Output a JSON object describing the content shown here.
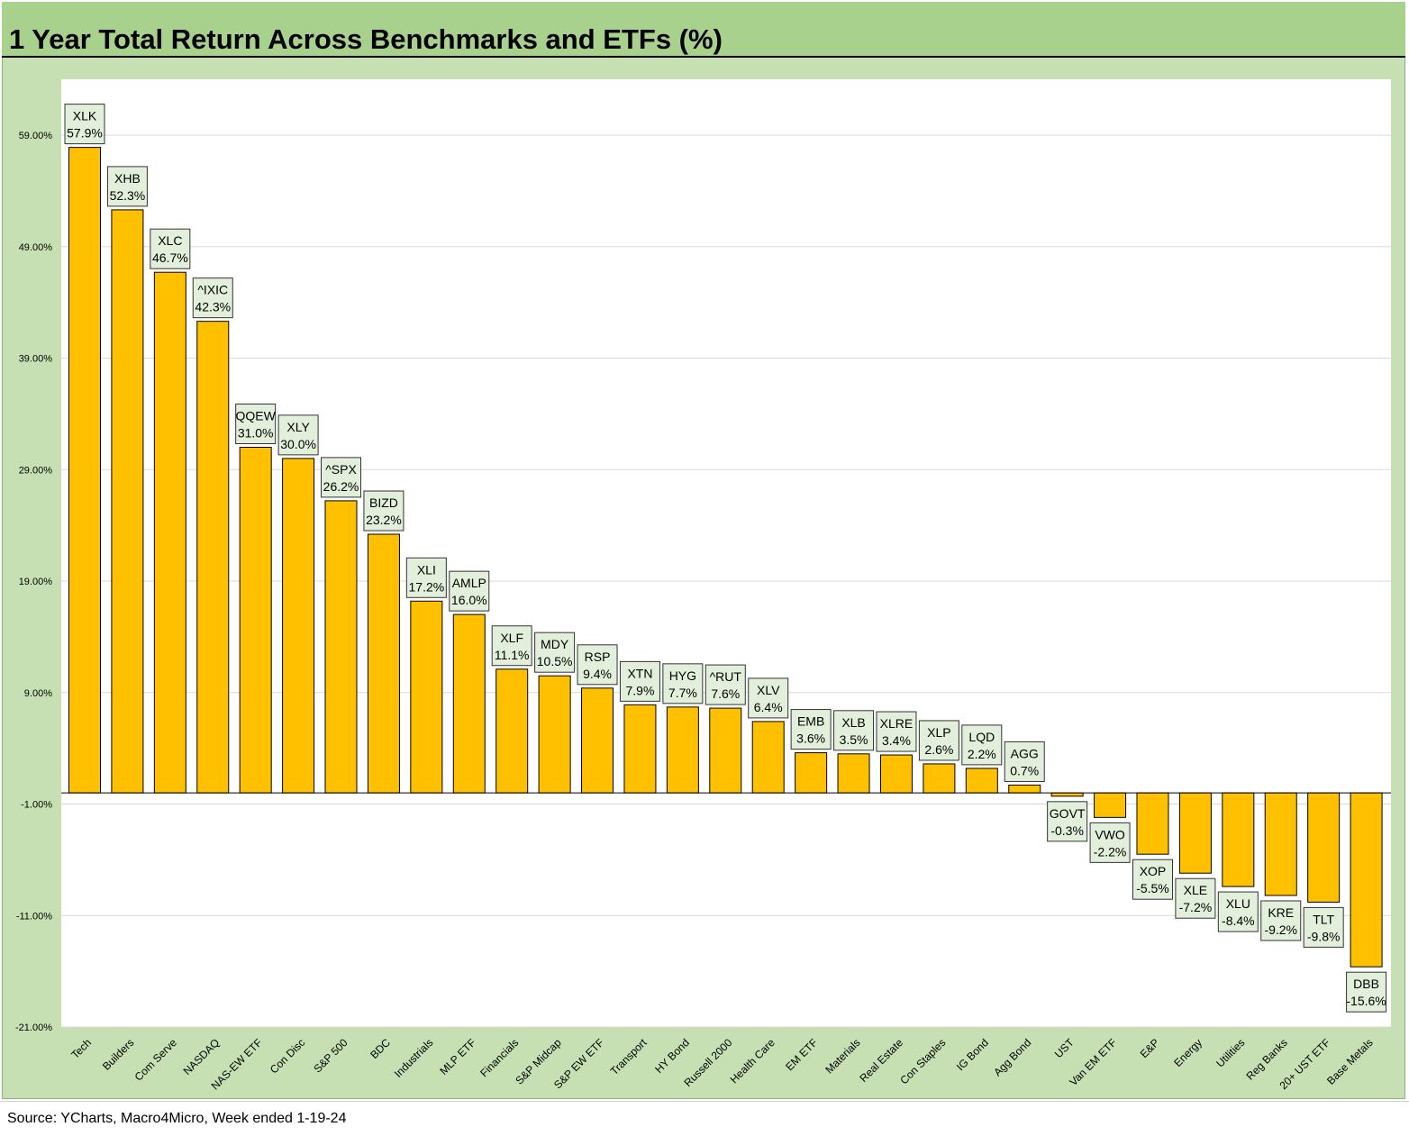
{
  "title": "1 Year Total Return Across Benchmarks and ETFs (%)",
  "source": "Source: YCharts, Macro4Micro, Week ended 1-19-24",
  "colors": {
    "bar": "#ffc000",
    "bar_stroke": "#000000",
    "label_bg": "#e2efda",
    "label_border": "#333333",
    "gridline": "#d9d9d9",
    "frame": "#c6e0b4",
    "title_bar": "#a9d18e"
  },
  "chart_data": {
    "type": "bar",
    "title": "1 Year Total Return Across Benchmarks and ETFs (%)",
    "xlabel": "",
    "ylabel": "",
    "ylim": [
      -21,
      64
    ],
    "yticks": [
      59,
      49,
      39,
      29,
      19,
      9,
      -1,
      -11,
      -21
    ],
    "ytick_labels": [
      "59.00%",
      "49.00%",
      "39.00%",
      "29.00%",
      "19.00%",
      "9.00%",
      "-1.00%",
      "-11.00%",
      "-21.00%"
    ],
    "grid": true,
    "categories": [
      "Tech",
      "Builders",
      "Com Serve",
      "NASDAQ",
      "NAS-EW ETF",
      "Con Disc",
      "S&P 500",
      "BDC",
      "Industrials",
      "MLP ETF",
      "Financials",
      "S&P Midcap",
      "S&P EW ETF",
      "Transport",
      "HY Bond",
      "Russell 2000",
      "Health Care",
      "EM ETF",
      "Materials",
      "Real Estate",
      "Con Staples",
      "IG Bond",
      "Agg Bond",
      "UST",
      "Van EM ETF",
      "E&P",
      "Energy",
      "Utilities",
      "Reg Banks",
      "20+ UST ETF",
      "Base Metals"
    ],
    "tickers": [
      "XLK",
      "XHB",
      "XLC",
      "^IXIC",
      "QQEW",
      "XLY",
      "^SPX",
      "BIZD",
      "XLI",
      "AMLP",
      "XLF",
      "MDY",
      "RSP",
      "XTN",
      "HYG",
      "^RUT",
      "XLV",
      "EMB",
      "XLB",
      "XLRE",
      "XLP",
      "LQD",
      "AGG",
      "GOVT",
      "VWO",
      "XOP",
      "XLE",
      "XLU",
      "KRE",
      "TLT",
      "DBB"
    ],
    "values": [
      57.9,
      52.3,
      46.7,
      42.3,
      31.0,
      30.0,
      26.2,
      23.2,
      17.2,
      16.0,
      11.1,
      10.5,
      9.4,
      7.9,
      7.7,
      7.6,
      6.4,
      3.6,
      3.5,
      3.4,
      2.6,
      2.2,
      0.7,
      -0.3,
      -2.2,
      -5.5,
      -7.2,
      -8.4,
      -9.2,
      -9.8,
      -15.6
    ],
    "value_labels": [
      "57.9%",
      "52.3%",
      "46.7%",
      "42.3%",
      "31.0%",
      "30.0%",
      "26.2%",
      "23.2%",
      "17.2%",
      "16.0%",
      "11.1%",
      "10.5%",
      "9.4%",
      "7.9%",
      "7.7%",
      "7.6%",
      "6.4%",
      "3.6%",
      "3.5%",
      "3.4%",
      "2.6%",
      "2.2%",
      "0.7%",
      "-0.3%",
      "-2.2%",
      "-5.5%",
      "-7.2%",
      "-8.4%",
      "-9.2%",
      "-9.8%",
      "-15.6%"
    ]
  }
}
